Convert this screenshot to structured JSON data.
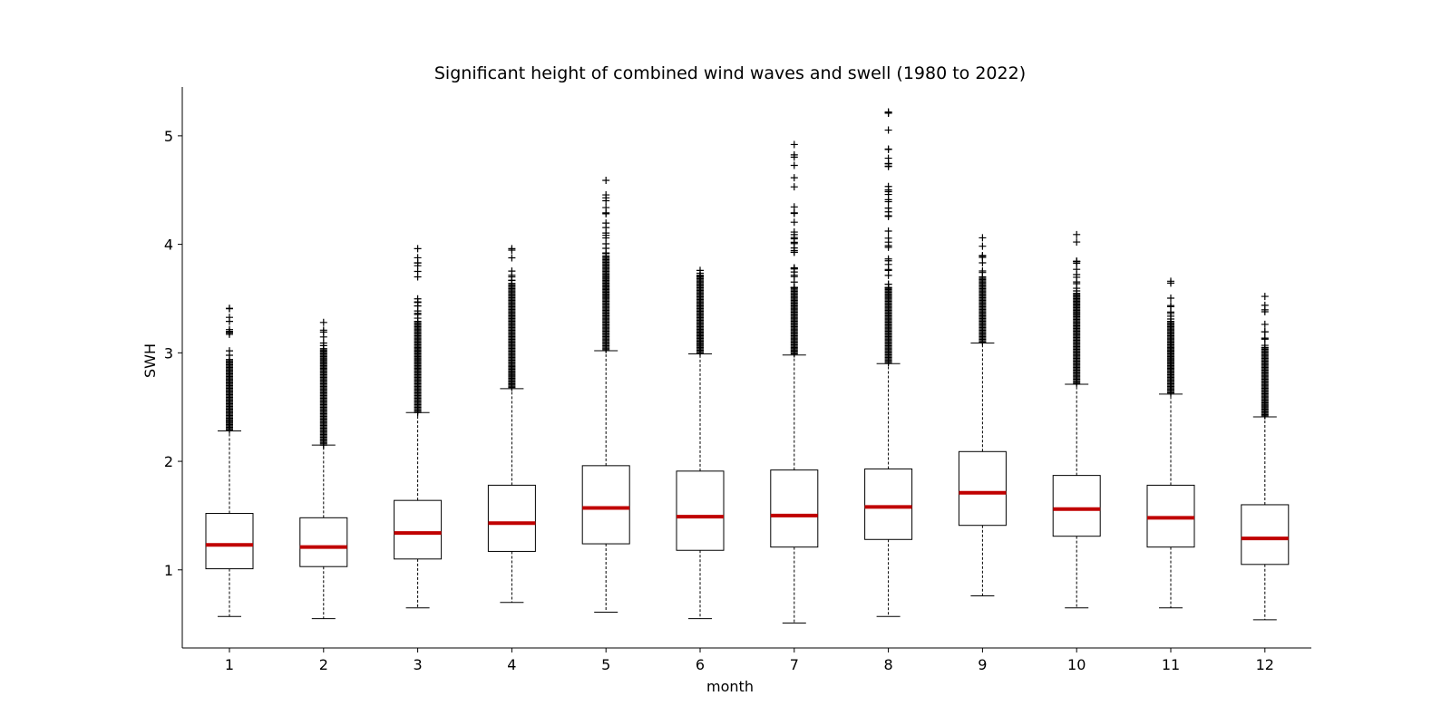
{
  "chart_data": {
    "type": "box",
    "title": "Significant height of combined wind waves and swell (1980 to 2022)",
    "xlabel": "month",
    "ylabel": "SWH",
    "categories": [
      "1",
      "2",
      "3",
      "4",
      "5",
      "6",
      "7",
      "8",
      "9",
      "10",
      "11",
      "12"
    ],
    "yticks": [
      1,
      2,
      3,
      4,
      5
    ],
    "ylim": [
      0.28,
      5.45
    ],
    "median_color": "#c00000",
    "boxes": [
      {
        "month": "1",
        "whislo": 0.57,
        "q1": 1.01,
        "med": 1.23,
        "q3": 1.52,
        "whishi": 2.28,
        "flier_min": 2.29,
        "flier_dense_max": 2.95,
        "flier_max": 3.41
      },
      {
        "month": "2",
        "whislo": 0.55,
        "q1": 1.03,
        "med": 1.21,
        "q3": 1.48,
        "whishi": 2.15,
        "flier_min": 2.15,
        "flier_dense_max": 3.05,
        "flier_max": 3.28
      },
      {
        "month": "3",
        "whislo": 0.65,
        "q1": 1.1,
        "med": 1.34,
        "q3": 1.64,
        "whishi": 2.45,
        "flier_min": 2.45,
        "flier_dense_max": 3.3,
        "flier_max": 3.96
      },
      {
        "month": "4",
        "whislo": 0.7,
        "q1": 1.17,
        "med": 1.43,
        "q3": 1.78,
        "whishi": 2.67,
        "flier_min": 2.68,
        "flier_dense_max": 3.65,
        "flier_max": 3.96
      },
      {
        "month": "5",
        "whislo": 0.61,
        "q1": 1.24,
        "med": 1.57,
        "q3": 1.96,
        "whishi": 3.02,
        "flier_min": 3.03,
        "flier_dense_max": 3.9,
        "flier_max": 4.59
      },
      {
        "month": "6",
        "whislo": 0.55,
        "q1": 1.18,
        "med": 1.49,
        "q3": 1.91,
        "whishi": 2.99,
        "flier_min": 3.0,
        "flier_dense_max": 3.7,
        "flier_max": 3.76
      },
      {
        "month": "7",
        "whislo": 0.51,
        "q1": 1.21,
        "med": 1.5,
        "q3": 1.92,
        "whishi": 2.98,
        "flier_min": 2.99,
        "flier_dense_max": 3.6,
        "flier_max": 4.92
      },
      {
        "month": "8",
        "whislo": 0.57,
        "q1": 1.28,
        "med": 1.58,
        "q3": 1.93,
        "whishi": 2.9,
        "flier_min": 2.91,
        "flier_dense_max": 3.6,
        "flier_max": 5.22
      },
      {
        "month": "9",
        "whislo": 0.76,
        "q1": 1.41,
        "med": 1.71,
        "q3": 2.09,
        "whishi": 3.09,
        "flier_min": 3.1,
        "flier_dense_max": 3.7,
        "flier_max": 4.06
      },
      {
        "month": "10",
        "whislo": 0.65,
        "q1": 1.31,
        "med": 1.56,
        "q3": 1.87,
        "whishi": 2.71,
        "flier_min": 2.72,
        "flier_dense_max": 3.55,
        "flier_max": 4.09
      },
      {
        "month": "11",
        "whislo": 0.65,
        "q1": 1.21,
        "med": 1.48,
        "q3": 1.78,
        "whishi": 2.62,
        "flier_min": 2.63,
        "flier_dense_max": 3.3,
        "flier_max": 3.66
      },
      {
        "month": "12",
        "whislo": 0.54,
        "q1": 1.05,
        "med": 1.29,
        "q3": 1.6,
        "whishi": 2.41,
        "flier_min": 2.42,
        "flier_dense_max": 3.05,
        "flier_max": 3.52
      }
    ]
  }
}
